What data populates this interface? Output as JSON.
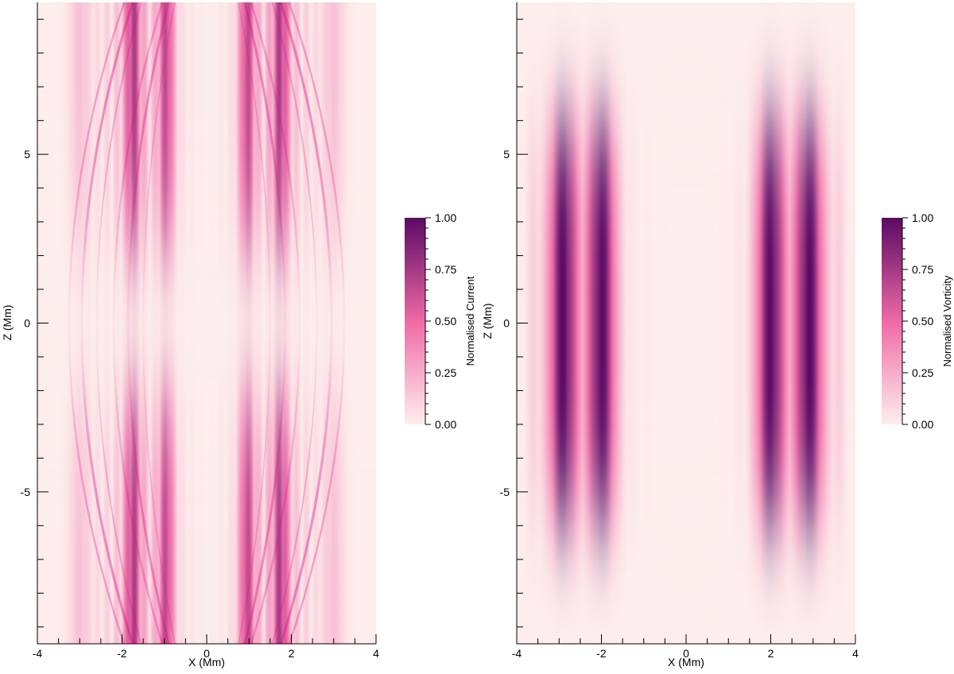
{
  "colors": {
    "low": "#fdeeed",
    "mid": "#ee6aa6",
    "high": "#5a0a63",
    "ridge": "#d8127f"
  },
  "chart_data": [
    {
      "type": "heatmap",
      "quantity": "current",
      "xlabel": "X (Mm)",
      "ylabel": "Z (Mm)",
      "xlim": [
        -4,
        4
      ],
      "ylim": [
        -9.5,
        9.5
      ],
      "xticks": [
        -4,
        -2,
        0,
        2,
        4
      ],
      "yticks": [
        -5,
        0,
        5
      ],
      "colorbar": {
        "label": "Normalised Current",
        "range": [
          0,
          1
        ],
        "ticks": [
          "0.00",
          "0.25",
          "0.50",
          "0.75",
          "1.00"
        ]
      },
      "structure": {
        "centers": [
          -1.75,
          -0.95,
          0.95,
          1.75
        ],
        "peak": 0.75,
        "min_near_z0": 0.05
      }
    },
    {
      "type": "heatmap",
      "quantity": "vorticity",
      "xlabel": "X (Mm)",
      "ylabel": "Z (Mm)",
      "xlim": [
        -4,
        4
      ],
      "ylim": [
        -9.5,
        9.5
      ],
      "xticks": [
        -4,
        -2,
        0,
        2,
        4
      ],
      "yticks": [
        -5,
        0,
        5
      ],
      "colorbar": {
        "label": "Normalised Vorticity",
        "range": [
          0,
          1
        ],
        "ticks": [
          "0.00",
          "0.25",
          "0.50",
          "0.75",
          "1.00"
        ]
      },
      "structure": {
        "centers": [
          -2.9,
          -2.0,
          2.0,
          2.9
        ],
        "peak": 0.9,
        "max_near_z0": true
      }
    }
  ]
}
